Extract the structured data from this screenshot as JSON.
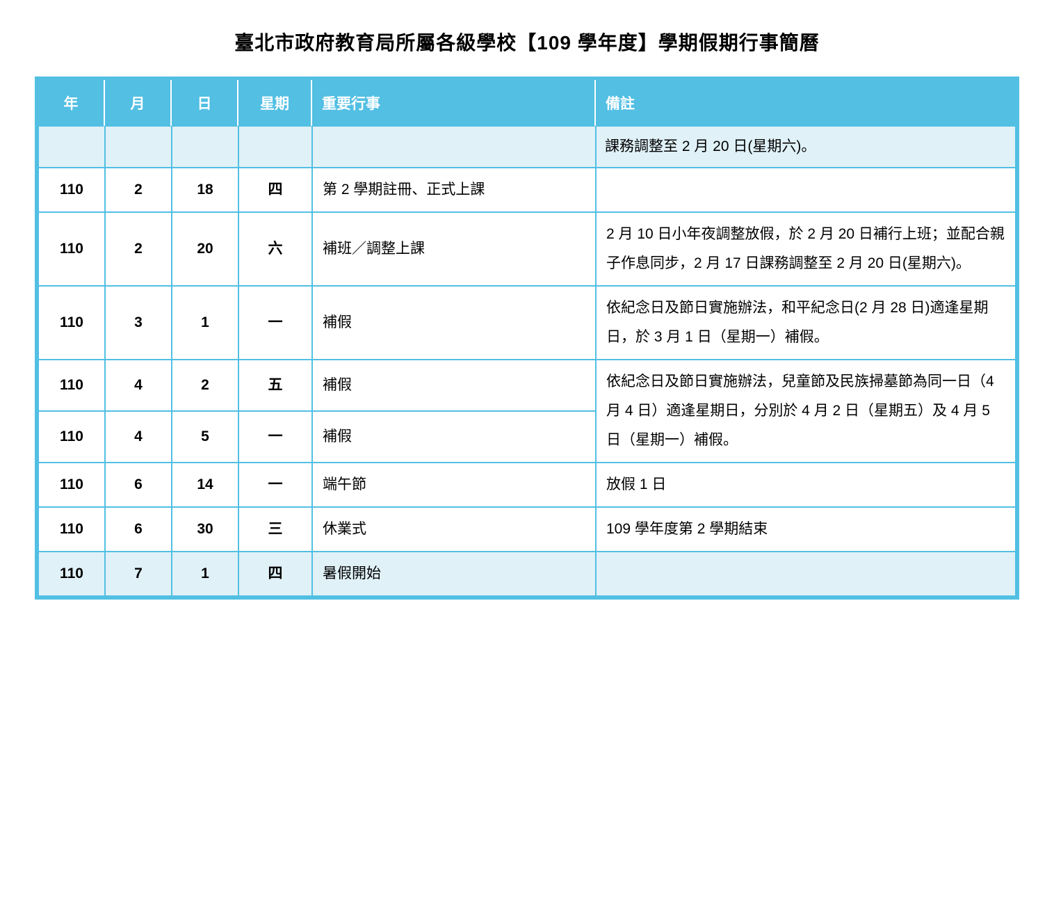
{
  "title": "臺北市政府教育局所屬各級學校【109 學年度】學期假期行事簡曆",
  "columns": {
    "year": "年",
    "month": "月",
    "day": "日",
    "weekday": "星期",
    "event": "重要行事",
    "note": "備註"
  },
  "rows": [
    {
      "year": "",
      "month": "",
      "day": "",
      "weekday": "",
      "event": "",
      "note": "課務調整至 2 月 20 日(星期六)。",
      "highlight": true
    },
    {
      "year": "110",
      "month": "2",
      "day": "18",
      "weekday": "四",
      "event": "第 2 學期註冊、正式上課",
      "note": ""
    },
    {
      "year": "110",
      "month": "2",
      "day": "20",
      "weekday": "六",
      "event": "補班／調整上課",
      "note": "2 月 10 日小年夜調整放假，於 2 月 20 日補行上班；並配合親子作息同步，2 月 17 日課務調整至 2 月 20 日(星期六)。"
    },
    {
      "year": "110",
      "month": "3",
      "day": "1",
      "weekday": "一",
      "event": "補假",
      "note": "依紀念日及節日實施辦法，和平紀念日(2 月 28 日)適逢星期日，於 3 月 1 日（星期一）補假。"
    },
    {
      "year": "110",
      "month": "4",
      "day": "2",
      "weekday": "五",
      "event": "補假",
      "note_rowspan_start": true,
      "note": "依紀念日及節日實施辦法，兒童節及民族掃墓節為同一日（4 月 4 日）適逢星期日，分別於 4 月 2 日（星期五）及 4 月 5 日（星期一）補假。"
    },
    {
      "year": "110",
      "month": "4",
      "day": "5",
      "weekday": "一",
      "event": "補假",
      "note_rowspan_skip": true
    },
    {
      "year": "110",
      "month": "6",
      "day": "14",
      "weekday": "一",
      "event": "端午節",
      "note": "放假 1 日"
    },
    {
      "year": "110",
      "month": "6",
      "day": "30",
      "weekday": "三",
      "event": "休業式",
      "note": "109 學年度第 2 學期結束"
    },
    {
      "year": "110",
      "month": "7",
      "day": "1",
      "weekday": "四",
      "event": "暑假開始",
      "note": "",
      "highlight": true
    }
  ],
  "style": {
    "header_bg": "#52bfe3",
    "header_fg": "#ffffff",
    "border_color": "#52bfe3",
    "highlight_bg": "#e0f1f8",
    "text_color": "#000000",
    "title_fontsize": 28,
    "body_fontsize": 21
  }
}
